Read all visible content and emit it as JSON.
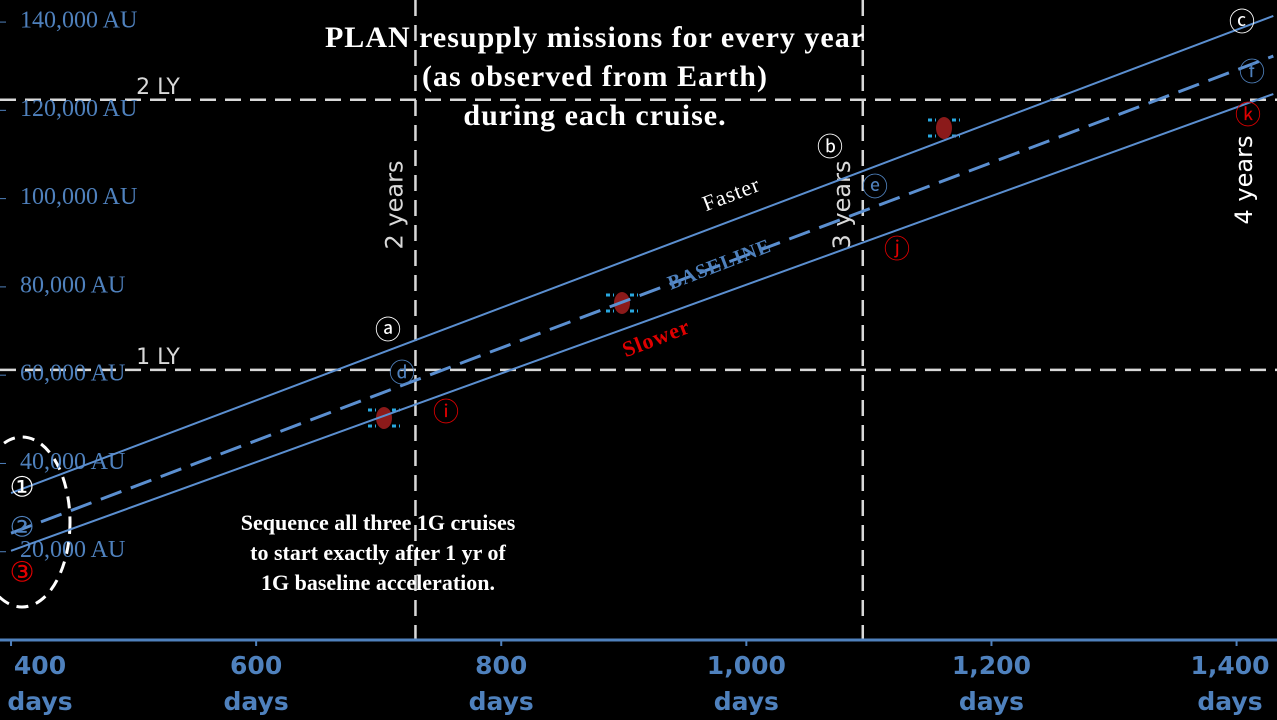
{
  "chart_data": {
    "type": "line",
    "title": "PLAN resupply missions for every year\n(as observed from Earth)\nduring each cruise.",
    "xlim": [
      391,
      1433
    ],
    "ylim": [
      0,
      145000
    ],
    "xticks": [
      {
        "value": 400,
        "label": "400\ndays"
      },
      {
        "value": 600,
        "label": "600\ndays"
      },
      {
        "value": 800,
        "label": "800\ndays"
      },
      {
        "value": 1000,
        "label": "1,000\ndays"
      },
      {
        "value": 1200,
        "label": "1,200\ndays"
      },
      {
        "value": 1400,
        "label": "1,400\ndays"
      }
    ],
    "yticks": [
      {
        "value": 20000,
        "label": "20,000 AU"
      },
      {
        "value": 40000,
        "label": "40,000 AU"
      },
      {
        "value": 60000,
        "label": "60,000 AU"
      },
      {
        "value": 80000,
        "label": "80,000 AU"
      },
      {
        "value": 100000,
        "label": "100,000 AU"
      },
      {
        "value": 120000,
        "label": "120,000 AU"
      },
      {
        "value": 140000,
        "label": "140,000 AU"
      }
    ],
    "hlines": [
      {
        "value": 61200,
        "label": "1 LY"
      },
      {
        "value": 122400,
        "label": "2 LY"
      }
    ],
    "vlines": [
      {
        "value": 730,
        "label": "2 years"
      },
      {
        "value": 1095,
        "label": "3 years"
      }
    ],
    "x": [
      400,
      1430
    ],
    "series": [
      {
        "name": "Faster",
        "color": "#5b8fd0",
        "values": [
          33300,
          141400
        ],
        "dashed": false
      },
      {
        "name": "BASELINE",
        "color": "#5b8fd0",
        "values": [
          24200,
          132300
        ],
        "dashed": true
      },
      {
        "name": "Slower",
        "color": "#5b8fd0",
        "values": [
          20200,
          123700
        ],
        "dashed": false
      }
    ],
    "annotations": [
      {
        "text": "4 years",
        "color": "#ffffff"
      },
      {
        "text": "Sequence all three 1G cruises\nto start exactly after 1 yr of\n1G baseline acceleration.",
        "color": "#ffffff"
      },
      {
        "text": "ⓐ",
        "color": "#ffffff"
      },
      {
        "text": "ⓑ",
        "color": "#ffffff"
      },
      {
        "text": "ⓒ",
        "color": "#ffffff"
      },
      {
        "text": "ⓓ",
        "color": "#4f81bd"
      },
      {
        "text": "ⓔ",
        "color": "#4f81bd"
      },
      {
        "text": "ⓕ",
        "color": "#4f81bd"
      },
      {
        "text": "ⓘ",
        "color": "#e00000"
      },
      {
        "text": "ⓙ",
        "color": "#e00000"
      },
      {
        "text": "ⓚ",
        "color": "#e00000"
      },
      {
        "text": "①",
        "color": "#ffffff"
      },
      {
        "text": "②",
        "color": "#4f81bd"
      },
      {
        "text": "③",
        "color": "#e00000"
      }
    ]
  }
}
